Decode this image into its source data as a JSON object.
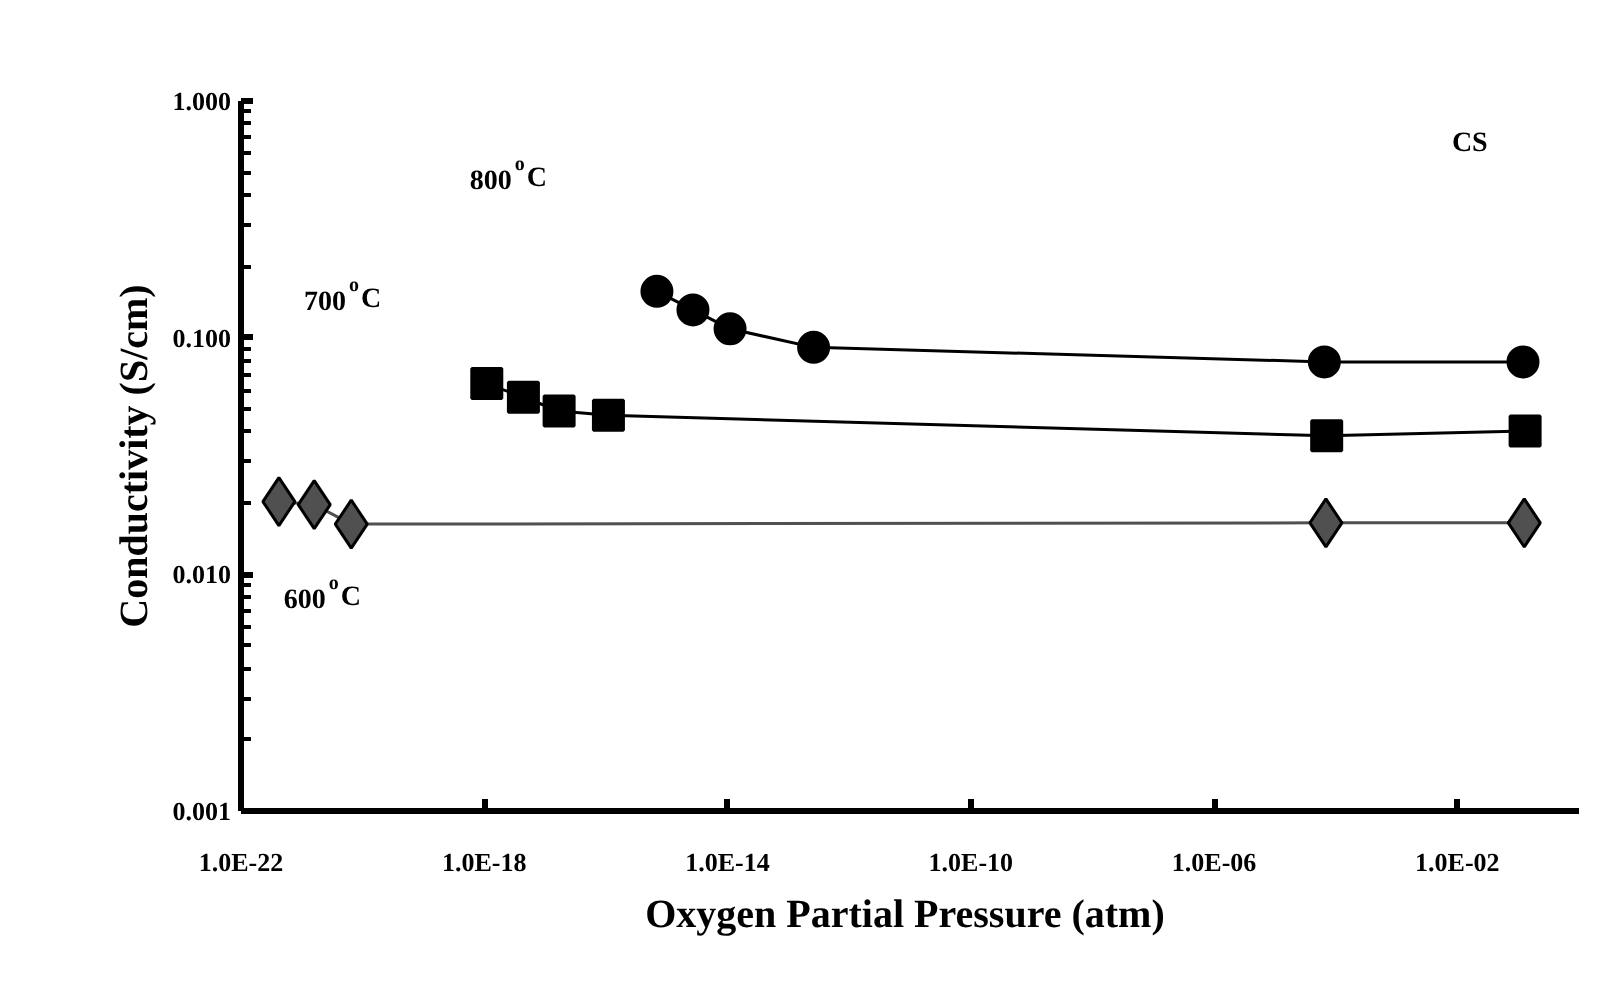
{
  "chart_data": {
    "type": "line",
    "xlabel": "Oxygen  Partial Pressure (atm)",
    "ylabel": "Conductivity (S/cm)",
    "log": "xy",
    "grid": false,
    "line_style": "solid",
    "xlim": [
      1e-22,
      1
    ],
    "xticks": [
      {
        "value": 1e-22,
        "label": "1.0E-22"
      },
      {
        "value": 1e-18,
        "label": "1.0E-18"
      },
      {
        "value": 1e-14,
        "label": "1.0E-14"
      },
      {
        "value": 1e-10,
        "label": "1.0E-10"
      },
      {
        "value": 1e-06,
        "label": "1.0E-06"
      },
      {
        "value": 0.01,
        "label": "1.0E-02"
      }
    ],
    "ylim": [
      0.001,
      1
    ],
    "yticks": [
      0.001,
      {
        "value": 0.01,
        "label": "0.010"
      },
      {
        "value": 0.1,
        "label": "0.100"
      },
      {
        "value": 1,
        "label": "1.000"
      }
    ],
    "series": [
      {
        "color": "#000000",
        "marker": "circle",
        "x": [
          6.9e-16,
          2.7e-15,
          1.1e-14,
          2.6e-13,
          6.5e-05,
          0.12
        ],
        "values": [
          0.157,
          0.131,
          0.109,
          0.091,
          0.079,
          0.079
        ]
      },
      {
        "color": "#000000",
        "marker": "square",
        "x": [
          1.1e-18,
          4.4e-18,
          1.7e-17,
          1.1e-16,
          7.1e-05,
          0.13
        ],
        "values": [
          0.064,
          0.056,
          0.049,
          0.047,
          0.0385,
          0.0403
        ]
      },
      {
        "color": "#505050",
        "marker": "diamond",
        "x": [
          4.2e-22,
          1.6e-21,
          6.5e-21,
          6.9e-05,
          0.126
        ],
        "values": [
          0.0203,
          0.0197,
          0.0163,
          0.0165,
          0.0165
        ]
      }
    ],
    "annotations": [
      "800$^{o}$C",
      "700$^{o}$C",
      "600$^{o}$C",
      "CS"
    ]
  }
}
